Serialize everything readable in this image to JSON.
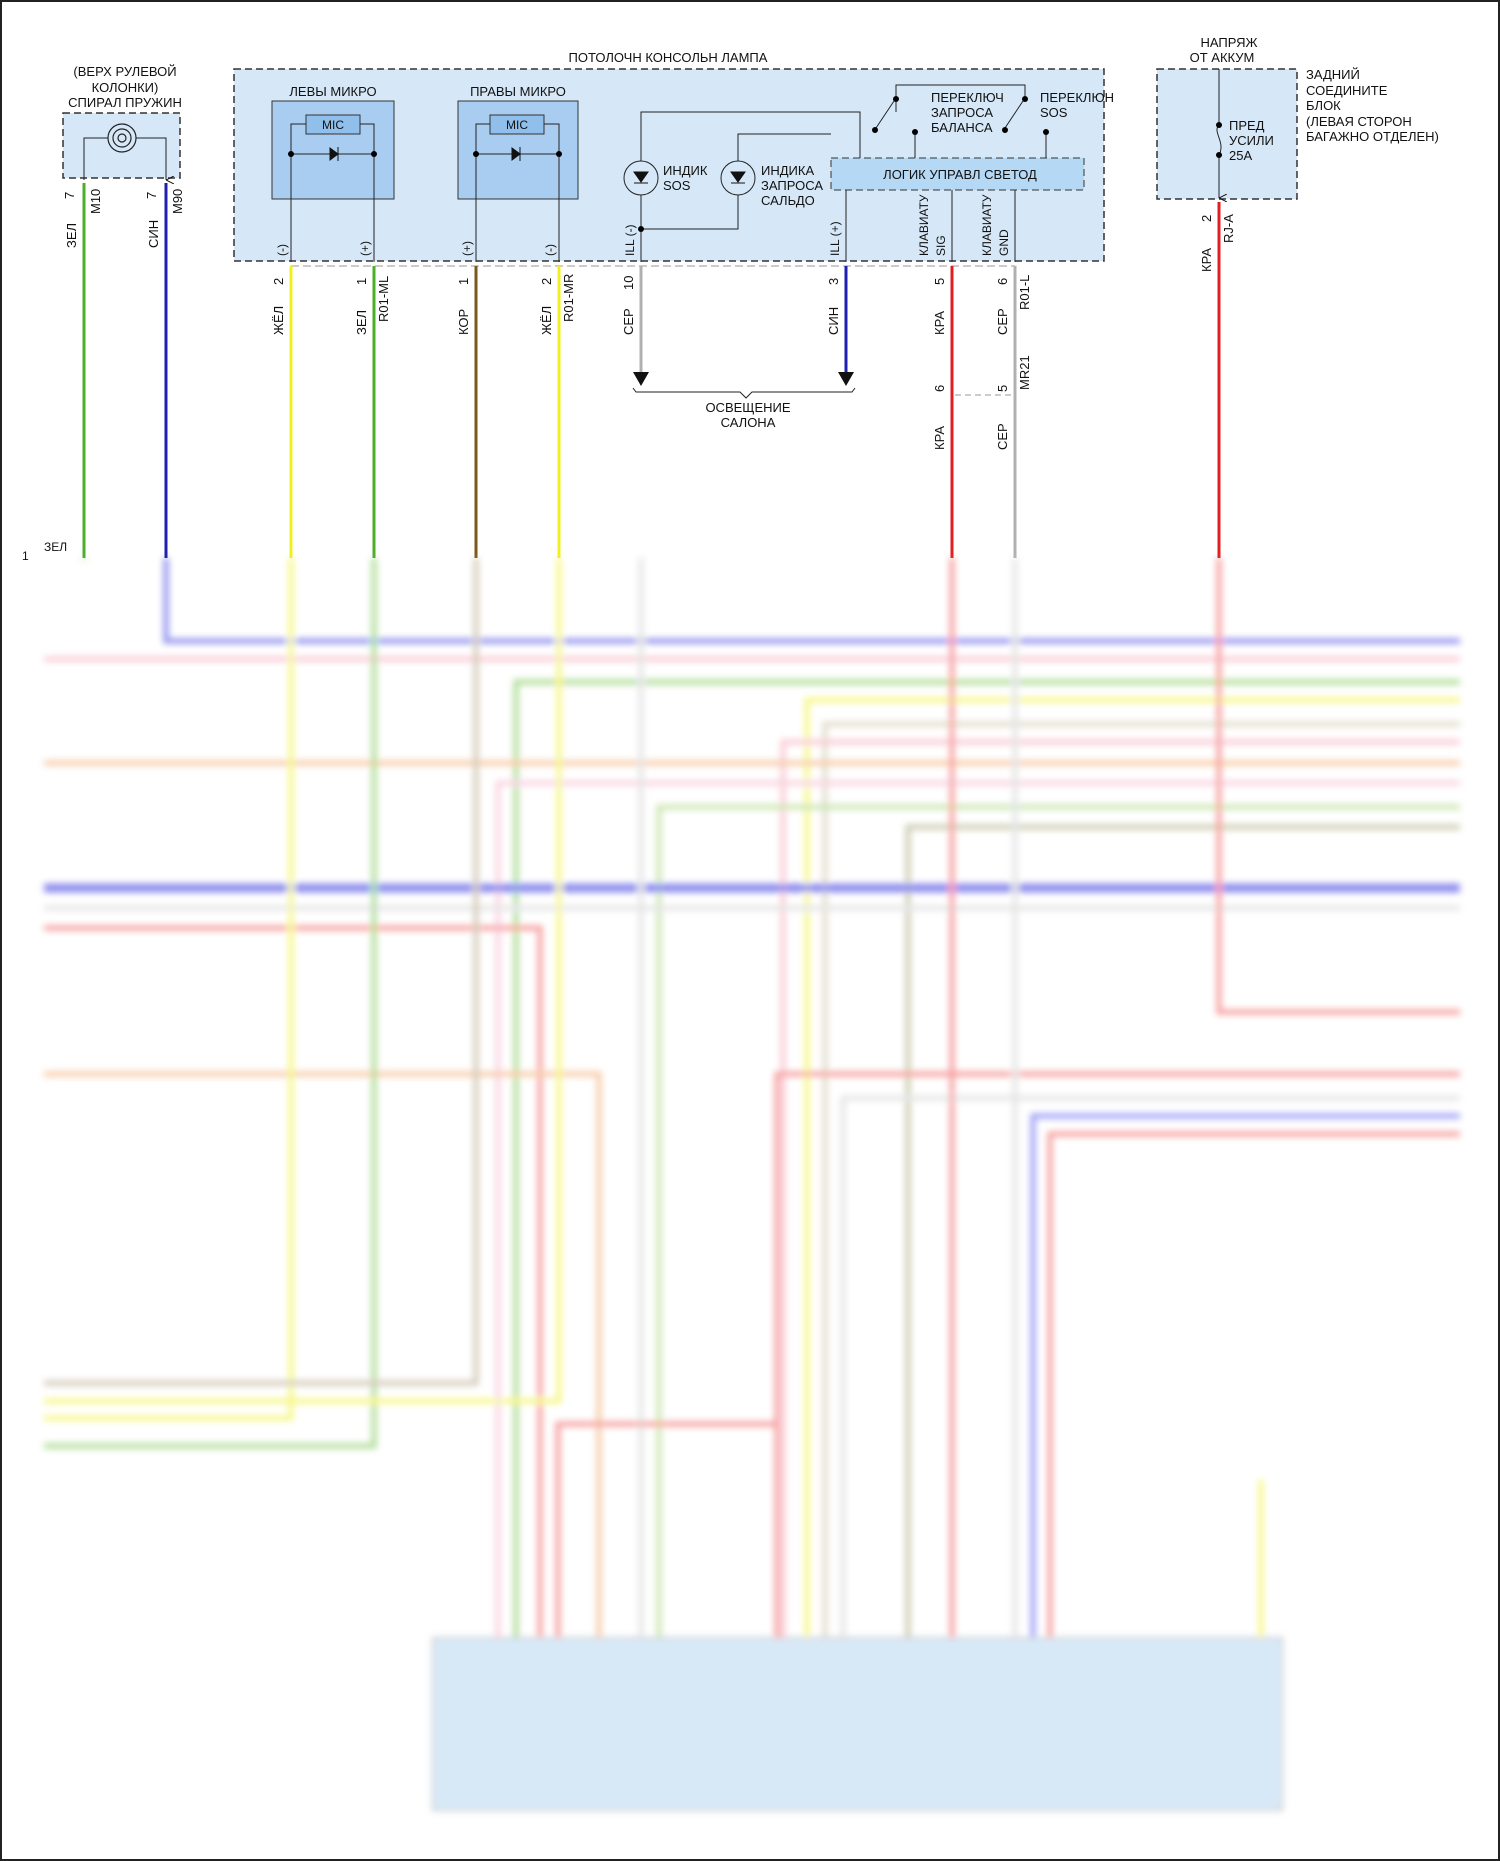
{
  "clock_spring": {
    "title_lines": [
      "(ВЕРХ РУЛЕВОЙ",
      "КОЛОНКИ)",
      "СПИРАЛ ПРУЖИН"
    ],
    "pins": [
      {
        "pin": "7",
        "connector": "M10",
        "wire": "ЗЕЛ",
        "color": "#4caf2a"
      },
      {
        "pin": "7",
        "connector": "M90",
        "wire": "СИН",
        "color": "#2020b0"
      }
    ]
  },
  "console_lamp": {
    "title": "ПОТОЛОЧН КОНСОЛЬН ЛАМПА",
    "left_mic": {
      "title": "ЛЕВЫ МИКРО",
      "chip": "MIC"
    },
    "right_mic": {
      "title": "ПРАВЫ МИКРО",
      "chip": "MIC"
    },
    "sos_indicator": [
      "ИНДИК",
      "SOS"
    ],
    "balance_indicator": [
      "ИНДИКА",
      "ЗАПРОСА",
      "САЛЬДО"
    ],
    "balance_switch": [
      "ПЕРЕКЛЮЧ",
      "ЗАПРОСА",
      "БАЛАНСА"
    ],
    "sos_switch": [
      "ПЕРЕКЛЮН",
      "SOS"
    ],
    "logic": "ЛОГИК УПРАВЛ СВЕТОД",
    "pin_labels": [
      "(-)",
      "(+)",
      "(+)",
      "(-)",
      "ILL (-)",
      "ILL (+)",
      "КЛАВИАТУ",
      "SIG",
      "КЛАВИАТУ",
      "GND"
    ],
    "wires": [
      {
        "pin": "2",
        "connector": "",
        "wire": "ЖЁЛ",
        "color": "#f0f020"
      },
      {
        "pin": "1",
        "connector": "R01-ML",
        "wire": "ЗЕЛ",
        "color": "#4caf2a"
      },
      {
        "pin": "1",
        "connector": "",
        "wire": "КОР",
        "color": "#7a5a1a"
      },
      {
        "pin": "2",
        "connector": "R01-MR",
        "wire": "ЖЁЛ",
        "color": "#f0f020"
      },
      {
        "pin": "10",
        "connector": "",
        "wire": "СЕР",
        "color": "#b0b0b0"
      },
      {
        "pin": "3",
        "connector": "",
        "wire": "СИН",
        "color": "#2020b0"
      },
      {
        "pin": "5",
        "connector": "",
        "wire": "КРА",
        "color": "#e02020"
      },
      {
        "pin": "6",
        "connector": "R01-L",
        "wire": "СЕР",
        "color": "#b0b0b0"
      }
    ],
    "ground_label": [
      "ОСВЕЩЕНИЕ",
      "САЛОНА"
    ],
    "mr21": {
      "connector": "MR21",
      "pins": [
        "6",
        "5"
      ],
      "wires": [
        "КРА",
        "СЕР"
      ]
    }
  },
  "battery": {
    "title_lines": [
      "НАПРЯЖ",
      "ОТ АККУМ"
    ],
    "block_lines": [
      "ЗАДНИЙ",
      "СОЕДИНИТЕ",
      "БЛОК",
      "(ЛЕВАЯ СТОРОН",
      "БАГАЖНО ОТДЕЛЕН)"
    ],
    "fuse_lines": [
      "ПРЕД",
      "УСИЛИ",
      "25А"
    ],
    "pin": "2",
    "connector": "RJ-A",
    "wire": "КРА",
    "color": "#e02020"
  },
  "lower_left": {
    "pin": "1",
    "wire": "ЗЕЛ"
  },
  "colors": {
    "box_fill": "#d6e8f8",
    "inner_box": "#a9cdf0",
    "logic_fill": "#b5d8f5"
  }
}
